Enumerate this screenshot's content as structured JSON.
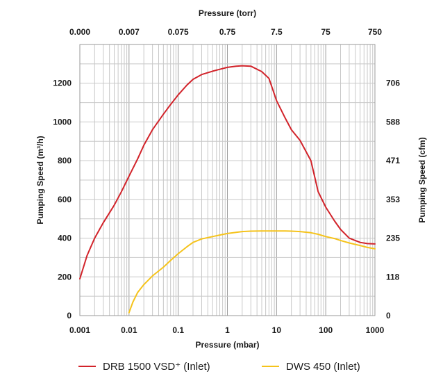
{
  "chart_data": {
    "type": "line",
    "title": "",
    "xlabel": "Pressure (mbar)",
    "x2label": "Pressure (torr)",
    "ylabel": "Pumping Speed (m³/h)",
    "ylabel_right": "Pumping Speed (cfm)",
    "x_scale": "log",
    "xlim": [
      0.001,
      1000
    ],
    "ylim": [
      0,
      1400
    ],
    "grid": true,
    "legend_position": "bottom",
    "x_ticks": [
      {
        "value": 0.001,
        "label": "0.001"
      },
      {
        "value": 0.01,
        "label": "0.01"
      },
      {
        "value": 0.1,
        "label": "0.1"
      },
      {
        "value": 1,
        "label": "1"
      },
      {
        "value": 10,
        "label": "10"
      },
      {
        "value": 100,
        "label": "100"
      },
      {
        "value": 1000,
        "label": "1000"
      }
    ],
    "x2_ticks": [
      "0.000",
      "0.007",
      "0.075",
      "0.75",
      "7.5",
      "75",
      "750"
    ],
    "y_ticks": [
      {
        "value": 0,
        "label": "0"
      },
      {
        "value": 200,
        "label": "200"
      },
      {
        "value": 400,
        "label": "400"
      },
      {
        "value": 600,
        "label": "600"
      },
      {
        "value": 800,
        "label": "800"
      },
      {
        "value": 1000,
        "label": "1000"
      },
      {
        "value": 1200,
        "label": "1200"
      }
    ],
    "y2_ticks": [
      "0",
      "118",
      "235",
      "353",
      "471",
      "588",
      "706"
    ],
    "series": [
      {
        "name": "DRB 1500 VSD⁺ (Inlet)",
        "color": "#d2232a",
        "x": [
          0.001,
          0.0014,
          0.002,
          0.003,
          0.005,
          0.007,
          0.01,
          0.015,
          0.02,
          0.03,
          0.05,
          0.07,
          0.1,
          0.15,
          0.2,
          0.3,
          0.5,
          0.7,
          1,
          1.5,
          2,
          3,
          5,
          7,
          10,
          15,
          20,
          30,
          50,
          70,
          100,
          150,
          200,
          300,
          500,
          700,
          1000
        ],
        "y": [
          190,
          310,
          400,
          480,
          570,
          640,
          720,
          810,
          880,
          960,
          1040,
          1090,
          1140,
          1190,
          1220,
          1245,
          1262,
          1272,
          1282,
          1288,
          1290,
          1288,
          1260,
          1225,
          1110,
          1020,
          960,
          905,
          800,
          640,
          560,
          490,
          445,
          400,
          378,
          372,
          370
        ],
        "x_plot": [
          0.001,
          0.0014,
          0.002,
          0.003,
          0.005,
          0.007,
          0.01,
          0.015,
          0.02,
          0.03,
          0.05,
          0.07,
          0.1,
          0.15,
          0.2,
          0.3,
          0.5,
          0.7,
          1,
          1.5,
          2,
          3,
          5,
          7,
          10,
          15,
          20,
          30,
          50,
          70,
          100,
          150,
          200,
          300,
          500,
          700,
          1000
        ]
      },
      {
        "name": "DWS 450 (Inlet)",
        "color": "#f5c31b",
        "x": [
          0.01,
          0.012,
          0.015,
          0.02,
          0.03,
          0.05,
          0.07,
          0.1,
          0.15,
          0.2,
          0.3,
          0.5,
          0.7,
          1,
          1.5,
          2,
          3,
          5,
          7,
          10,
          15,
          20,
          30,
          50,
          70,
          100,
          150,
          200,
          300,
          500,
          700,
          1000
        ],
        "y": [
          15,
          70,
          120,
          160,
          205,
          250,
          285,
          320,
          355,
          378,
          396,
          408,
          416,
          424,
          430,
          434,
          436,
          437,
          437,
          437,
          437,
          436,
          434,
          428,
          420,
          408,
          398,
          388,
          375,
          362,
          352,
          345
        ]
      }
    ]
  }
}
